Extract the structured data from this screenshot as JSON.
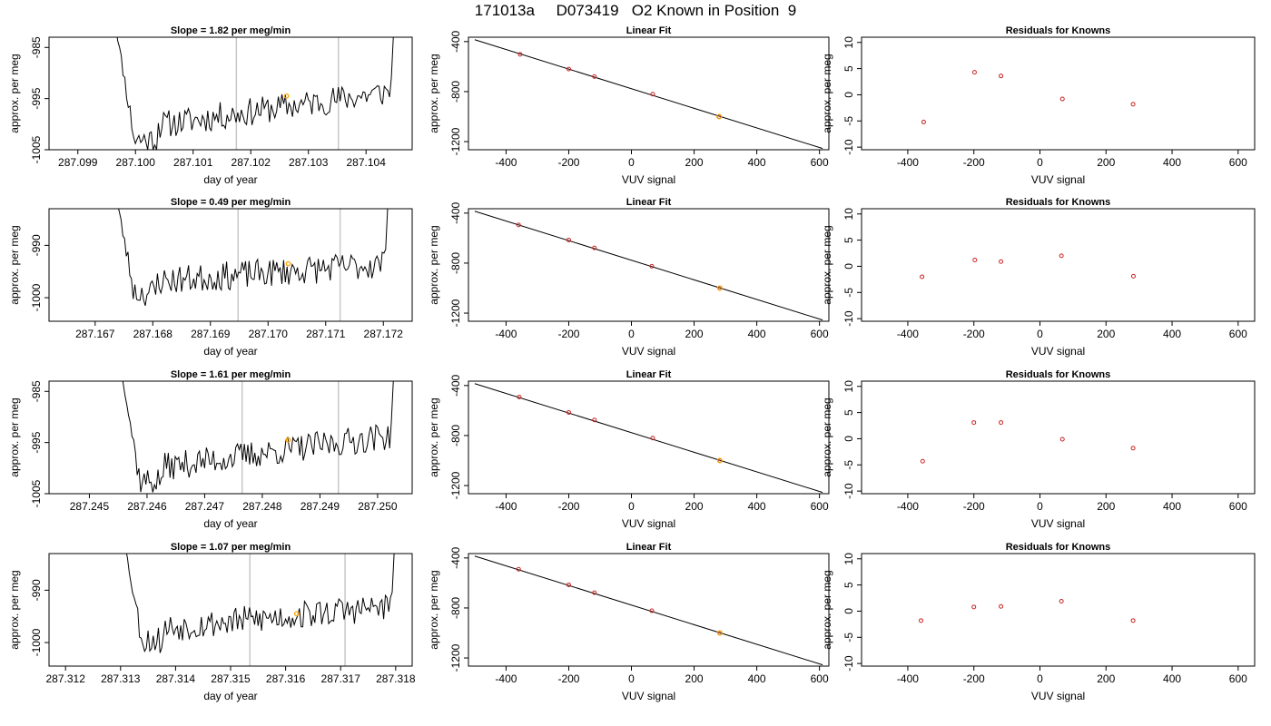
{
  "title": "171013a     D073419   O2 Known in Position  9",
  "colors": {
    "line": "#000000",
    "marker": "#cc2222",
    "highlight": "#ffa500",
    "vline": "#c8c8c8"
  },
  "chart_data": [
    {
      "type": "line",
      "title": "Slope =  1.82  per meg/min",
      "xlabel": "day of year",
      "ylabel": "approx. per meg",
      "xlim": [
        287.0985,
        287.1048
      ],
      "ylim": [
        -1005,
        -983
      ],
      "xticks": [
        "287.099",
        "287.100",
        "287.101",
        "287.102",
        "287.103",
        "287.104"
      ],
      "yticks": [
        "-985",
        "-995",
        "-1005"
      ],
      "vlines": [
        287.10175,
        287.10352
      ],
      "highlight": {
        "x": 287.10262,
        "y": -994.5
      },
      "trace": {
        "x_start": 287.0996,
        "x_end": 287.1045,
        "base_start": -1001.5,
        "base_end": -993.5,
        "min_y": -1005,
        "seed": 11
      }
    },
    {
      "type": "scatter",
      "title": "Linear Fit",
      "xlabel": "VUV signal",
      "ylabel": "approx. per meg",
      "xlim": [
        -520,
        630
      ],
      "ylim": [
        -1265,
        -365
      ],
      "xticks": [
        "-400",
        "-200",
        "0",
        "200",
        "400",
        "600"
      ],
      "yticks": [
        "-400",
        "-800",
        "-1200"
      ],
      "points": [
        {
          "x": -355,
          "y": -502
        },
        {
          "x": -200,
          "y": -620
        },
        {
          "x": -118,
          "y": -680
        },
        {
          "x": 68,
          "y": -820
        },
        {
          "x": 280,
          "y": -1000
        }
      ],
      "highlight_index": 4,
      "fit": {
        "x1": -500,
        "y1": -385,
        "x2": 610,
        "y2": -1255
      }
    },
    {
      "type": "scatter",
      "title": "Residuals for Knowns",
      "xlabel": "VUV signal",
      "ylabel": "approx. per meg",
      "xlim": [
        -540,
        650
      ],
      "ylim": [
        -10.5,
        11
      ],
      "xticks": [
        "-400",
        "-200",
        "0",
        "200",
        "400",
        "600"
      ],
      "yticks": [
        "10",
        "5",
        "0",
        "-5",
        "-10"
      ],
      "points": [
        {
          "x": -352,
          "y": -5.2
        },
        {
          "x": -198,
          "y": 4.3
        },
        {
          "x": -118,
          "y": 3.6
        },
        {
          "x": 68,
          "y": -0.8
        },
        {
          "x": 282,
          "y": -1.8
        }
      ]
    },
    {
      "type": "line",
      "title": "Slope =  0.49  per meg/min",
      "xlabel": "day of year",
      "ylabel": "approx. per meg",
      "xlim": [
        287.1662,
        287.1725
      ],
      "ylim": [
        -1004.5,
        -983
      ],
      "xticks": [
        "287.167",
        "287.168",
        "287.169",
        "287.170",
        "287.171",
        "287.172"
      ],
      "yticks": [
        "-990",
        "-1000"
      ],
      "vlines": [
        287.16948,
        287.17125
      ],
      "highlight": {
        "x": 287.17035,
        "y": -993.5
      },
      "trace": {
        "x_start": 287.1673,
        "x_end": 287.1721,
        "base_start": -997.5,
        "base_end": -993.5,
        "min_y": -1004.5,
        "seed": 23
      }
    },
    {
      "type": "scatter",
      "title": "Linear Fit",
      "xlabel": "VUV signal",
      "ylabel": "approx. per meg",
      "xlim": [
        -520,
        630
      ],
      "ylim": [
        -1265,
        -365
      ],
      "xticks": [
        "-400",
        "-200",
        "0",
        "200",
        "400",
        "600"
      ],
      "yticks": [
        "-400",
        "-800",
        "-1200"
      ],
      "points": [
        {
          "x": -360,
          "y": -495
        },
        {
          "x": -200,
          "y": -615
        },
        {
          "x": -118,
          "y": -678
        },
        {
          "x": 65,
          "y": -825
        },
        {
          "x": 282,
          "y": -1000
        }
      ],
      "highlight_index": 4,
      "fit": {
        "x1": -500,
        "y1": -385,
        "x2": 610,
        "y2": -1255
      }
    },
    {
      "type": "scatter",
      "title": "Residuals for Knowns",
      "xlabel": "VUV signal",
      "ylabel": "approx. per meg",
      "xlim": [
        -540,
        650
      ],
      "ylim": [
        -10.5,
        11
      ],
      "xticks": [
        "-400",
        "-200",
        "0",
        "200",
        "400",
        "600"
      ],
      "yticks": [
        "10",
        "5",
        "0",
        "-5",
        "-10"
      ],
      "points": [
        {
          "x": -357,
          "y": -2.0
        },
        {
          "x": -197,
          "y": 1.2
        },
        {
          "x": -118,
          "y": 0.9
        },
        {
          "x": 65,
          "y": 2.0
        },
        {
          "x": 283,
          "y": -1.9
        }
      ]
    },
    {
      "type": "line",
      "title": "Slope =  1.61  per meg/min",
      "xlabel": "day of year",
      "ylabel": "approx. per meg",
      "xlim": [
        287.2443,
        287.2506
      ],
      "ylim": [
        -1005,
        -983
      ],
      "xticks": [
        "287.245",
        "287.246",
        "287.247",
        "287.248",
        "287.249",
        "287.250"
      ],
      "yticks": [
        "-985",
        "-995",
        "-1005"
      ],
      "vlines": [
        287.24765,
        287.24932
      ],
      "highlight": {
        "x": 287.24845,
        "y": -994.5
      },
      "trace": {
        "x_start": 287.2455,
        "x_end": 287.2503,
        "base_start": -1001,
        "base_end": -993.5,
        "min_y": -1005,
        "seed": 37
      }
    },
    {
      "type": "scatter",
      "title": "Linear Fit",
      "xlabel": "VUV signal",
      "ylabel": "approx. per meg",
      "xlim": [
        -520,
        630
      ],
      "ylim": [
        -1265,
        -365
      ],
      "xticks": [
        "-400",
        "-200",
        "0",
        "200",
        "400",
        "600"
      ],
      "yticks": [
        "-400",
        "-800",
        "-1200"
      ],
      "points": [
        {
          "x": -358,
          "y": -492
        },
        {
          "x": -200,
          "y": -615
        },
        {
          "x": -118,
          "y": -675
        },
        {
          "x": 68,
          "y": -820
        },
        {
          "x": 282,
          "y": -1000
        }
      ],
      "highlight_index": 4,
      "fit": {
        "x1": -500,
        "y1": -385,
        "x2": 610,
        "y2": -1255
      }
    },
    {
      "type": "scatter",
      "title": "Residuals for Knowns",
      "xlabel": "VUV signal",
      "ylabel": "approx. per meg",
      "xlim": [
        -540,
        650
      ],
      "ylim": [
        -10.5,
        11
      ],
      "xticks": [
        "-400",
        "-200",
        "0",
        "200",
        "400",
        "600"
      ],
      "yticks": [
        "10",
        "5",
        "0",
        "-5",
        "-10"
      ],
      "points": [
        {
          "x": -355,
          "y": -4.3
        },
        {
          "x": -200,
          "y": 3.1
        },
        {
          "x": -118,
          "y": 3.1
        },
        {
          "x": 68,
          "y": -0.1
        },
        {
          "x": 282,
          "y": -1.8
        }
      ]
    },
    {
      "type": "line",
      "title": "Slope =  1.07  per meg/min",
      "xlabel": "day of year",
      "ylabel": "approx. per meg",
      "xlim": [
        287.3117,
        287.3183
      ],
      "ylim": [
        -1004.5,
        -983
      ],
      "xticks": [
        "287.312",
        "287.313",
        "287.314",
        "287.315",
        "287.316",
        "287.317",
        "287.318"
      ],
      "yticks": [
        "-990",
        "-1000"
      ],
      "vlines": [
        287.31535,
        287.31708
      ],
      "highlight": {
        "x": 287.3162,
        "y": -994.5
      },
      "trace": {
        "x_start": 287.313,
        "x_end": 287.318,
        "base_start": -998,
        "base_end": -993,
        "min_y": -1004,
        "seed": 53
      }
    },
    {
      "type": "scatter",
      "title": "Linear Fit",
      "xlabel": "VUV signal",
      "ylabel": "approx. per meg",
      "xlim": [
        -520,
        630
      ],
      "ylim": [
        -1265,
        -365
      ],
      "xticks": [
        "-400",
        "-200",
        "0",
        "200",
        "400",
        "600"
      ],
      "yticks": [
        "-400",
        "-800",
        "-1200"
      ],
      "points": [
        {
          "x": -360,
          "y": -490
        },
        {
          "x": -200,
          "y": -615
        },
        {
          "x": -118,
          "y": -678
        },
        {
          "x": 65,
          "y": -822
        },
        {
          "x": 282,
          "y": -1000
        }
      ],
      "highlight_index": 4,
      "fit": {
        "x1": -500,
        "y1": -385,
        "x2": 610,
        "y2": -1255
      }
    },
    {
      "type": "scatter",
      "title": "Residuals for Knowns",
      "xlabel": "VUV signal",
      "ylabel": "approx. per meg",
      "xlim": [
        -540,
        650
      ],
      "ylim": [
        -10.5,
        11
      ],
      "xticks": [
        "-400",
        "-200",
        "0",
        "200",
        "400",
        "600"
      ],
      "yticks": [
        "10",
        "5",
        "0",
        "-5",
        "-10"
      ],
      "points": [
        {
          "x": -360,
          "y": -1.8
        },
        {
          "x": -200,
          "y": 0.8
        },
        {
          "x": -118,
          "y": 0.9
        },
        {
          "x": 65,
          "y": 1.9
        },
        {
          "x": 282,
          "y": -1.8
        }
      ]
    }
  ]
}
